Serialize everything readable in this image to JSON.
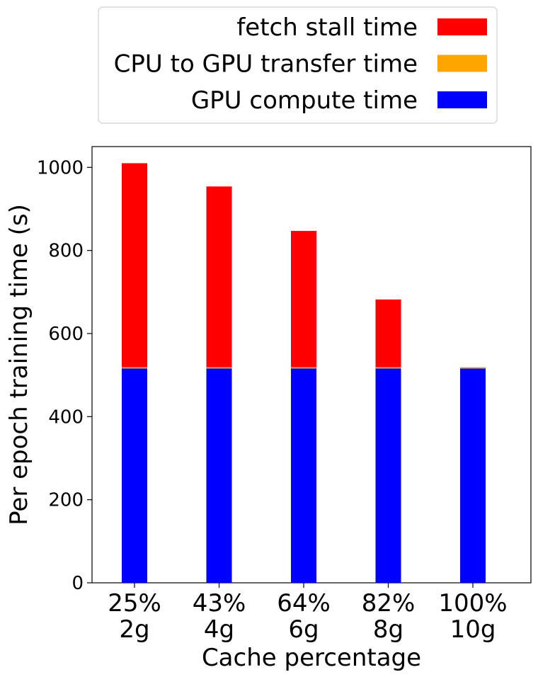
{
  "chart_data": {
    "type": "bar",
    "stacked": true,
    "categories": [
      "25%\n2g",
      "43%\n4g",
      "64%\n6g",
      "82%\n8g",
      "100%\n10g"
    ],
    "series": [
      {
        "name": "GPU compute time",
        "color": "#0000ff",
        "values": [
          516,
          516,
          516,
          516,
          516
        ]
      },
      {
        "name": "CPU to GPU transfer time",
        "color": "#ffa500",
        "values": [
          3,
          3,
          3,
          3,
          3
        ]
      },
      {
        "name": "fetch stall time",
        "color": "#ff0000",
        "values": [
          491,
          435,
          328,
          163,
          0
        ]
      }
    ],
    "legend_order": [
      "fetch stall time",
      "CPU to GPU transfer time",
      "GPU compute time"
    ],
    "legend_position": "top-center",
    "xlabel": "Cache percentage",
    "ylabel": "Per epoch training time (s)",
    "ylim": [
      0,
      1050
    ],
    "yticks": [
      0,
      200,
      400,
      600,
      800,
      1000
    ],
    "grid": false
  }
}
